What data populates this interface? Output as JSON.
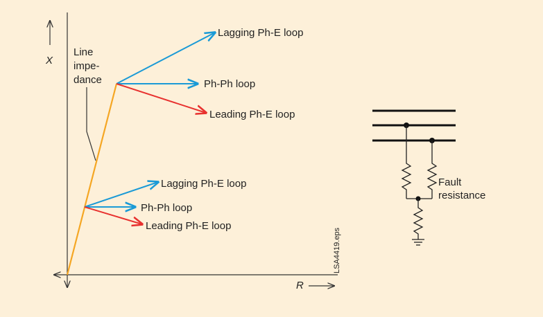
{
  "axes": {
    "vertical": "X",
    "horizontal": "R"
  },
  "impedance_label": [
    "Line",
    "impe-",
    "dance"
  ],
  "upper_loops": {
    "lagging": "Lagging Ph-E loop",
    "phph": "Ph-Ph loop",
    "leading": "Leading Ph-E loop"
  },
  "lower_loops": {
    "lagging": "Lagging Ph-E loop",
    "phph": "Ph-Ph loop",
    "leading": "Leading Ph-E loop"
  },
  "fault_label": [
    "Fault",
    "resistance"
  ],
  "file_id": "LSA4419.eps"
}
